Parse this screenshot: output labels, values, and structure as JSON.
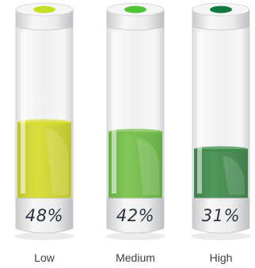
{
  "tubes": [
    {
      "label": "Low",
      "percent_text": "48%",
      "level": 0.48,
      "liquid_color": "#d8dc2c",
      "liquid_dark": "#b9c01a",
      "cap_color": "#c6df26"
    },
    {
      "label": "Medium",
      "percent_text": "42%",
      "level": 0.42,
      "liquid_color": "#76c24a",
      "liquid_dark": "#5aa636",
      "cap_color": "#4fc437"
    },
    {
      "label": "High",
      "percent_text": "31%",
      "level": 0.31,
      "liquid_color": "#3f8e4a",
      "liquid_dark": "#2f7239",
      "cap_color": "#117a3e"
    }
  ]
}
